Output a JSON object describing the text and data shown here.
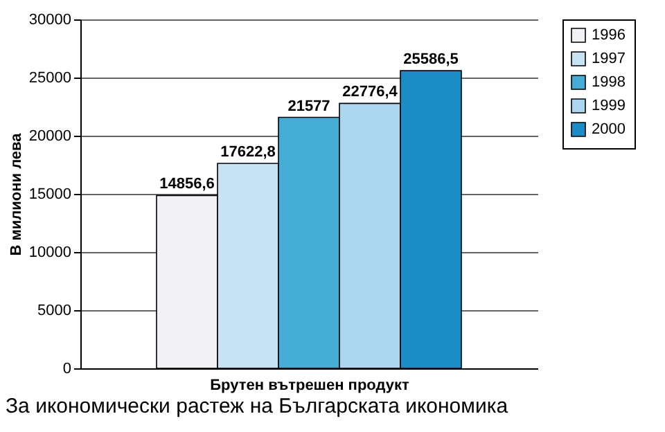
{
  "chart_data": {
    "type": "bar",
    "xlabel": "Брутен вътрешен продукт",
    "ylabel": "В милиони лева",
    "categories": [
      null
    ],
    "series": [
      {
        "name": "1996",
        "color": "#f2f2f6",
        "values": [
          14856.6
        ],
        "value_labels": [
          "14856,6"
        ]
      },
      {
        "name": "1997",
        "color": "#c6e2f3",
        "values": [
          17622.8
        ],
        "value_labels": [
          "17622,8"
        ]
      },
      {
        "name": "1998",
        "color": "#45acd6",
        "values": [
          21577
        ],
        "value_labels": [
          "21577"
        ]
      },
      {
        "name": "1999",
        "color": "#acd6ef",
        "values": [
          22776.4
        ],
        "value_labels": [
          "22776,4"
        ]
      },
      {
        "name": "2000",
        "color": "#1c8cc6",
        "values": [
          25586.5
        ],
        "value_labels": [
          "25586,5"
        ]
      }
    ],
    "ylim": [
      0,
      30000
    ],
    "yticks": [
      0,
      5000,
      10000,
      15000,
      20000,
      25000,
      30000
    ],
    "grid": "y",
    "legend": "right",
    "annotations": [
      "За икономически растеж на Българската икономика"
    ]
  }
}
